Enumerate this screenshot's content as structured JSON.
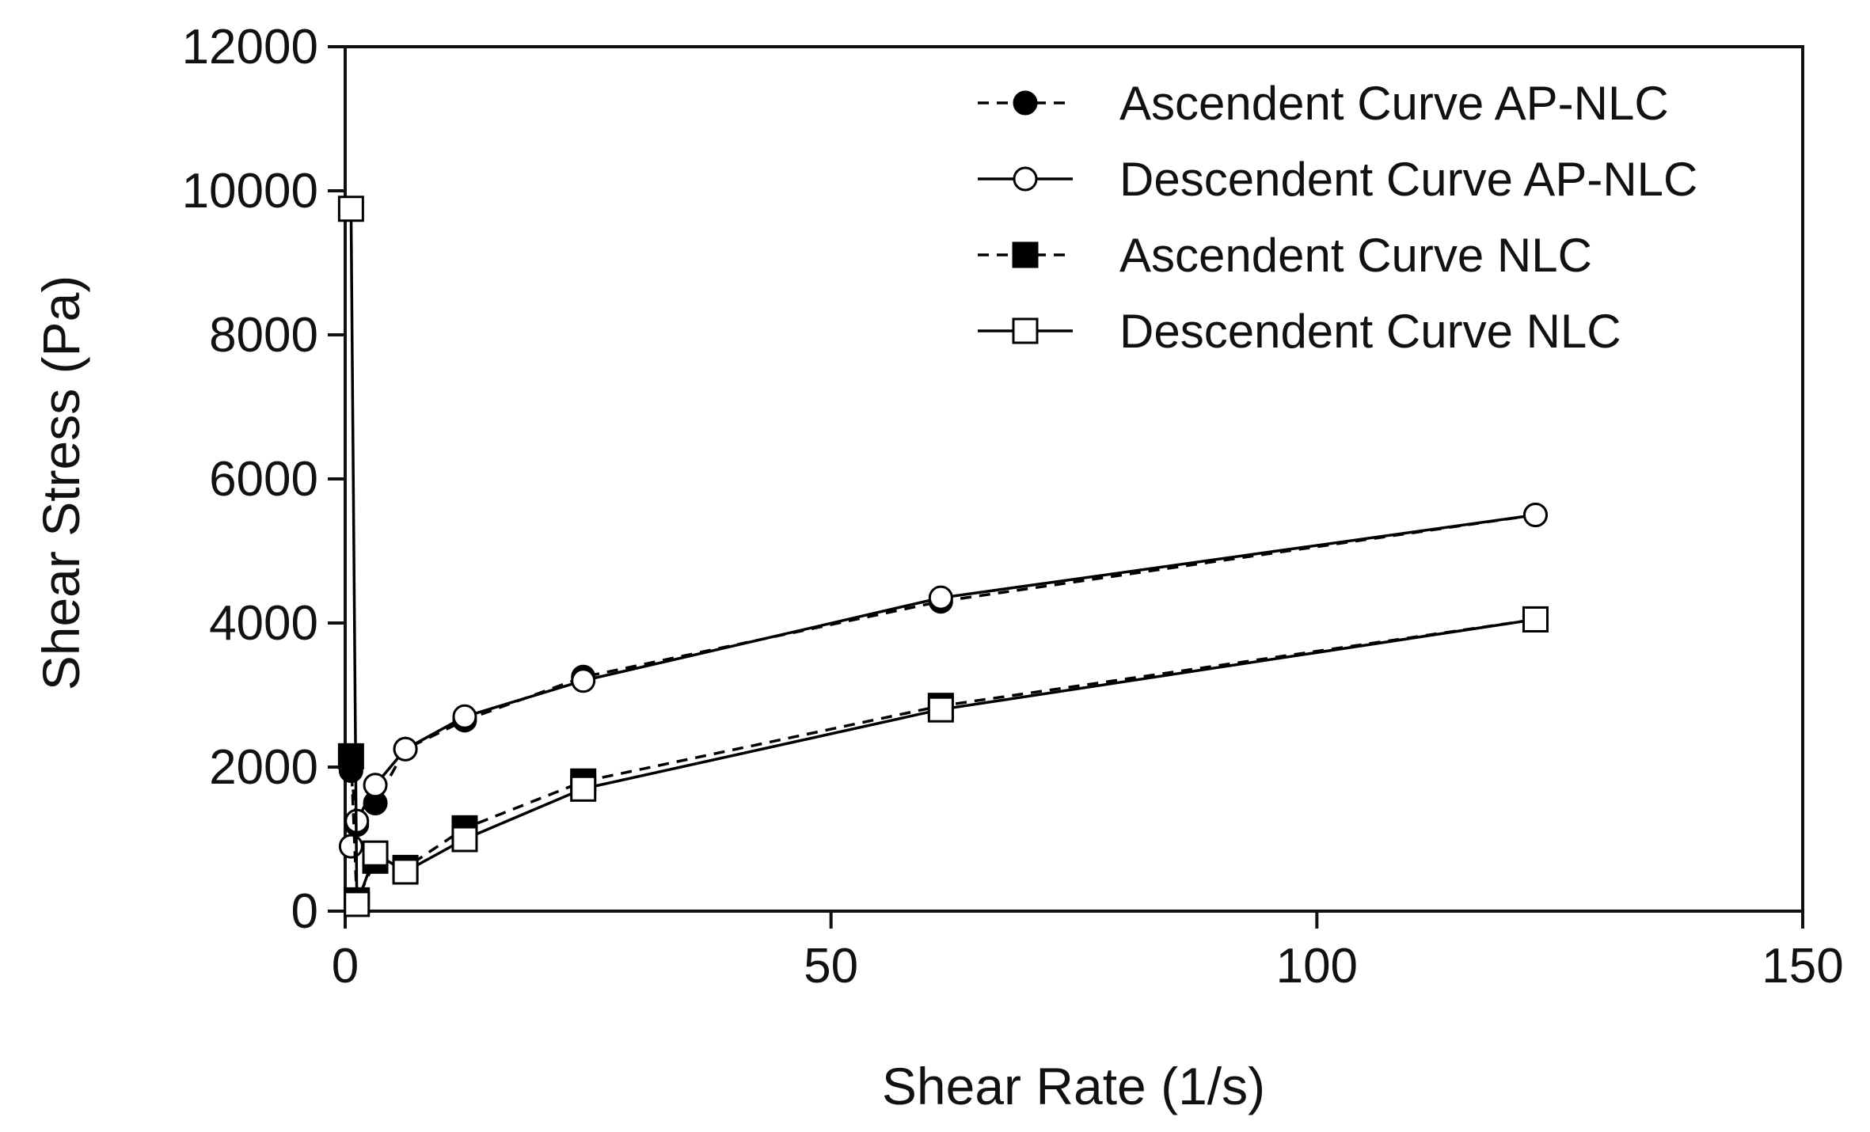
{
  "chart_data": {
    "type": "line",
    "title": "",
    "xlabel": "Shear Rate (1/s)",
    "ylabel": "Shear Stress (Pa)",
    "xlim": [
      0,
      150
    ],
    "ylim": [
      0,
      12000
    ],
    "xticks": [
      0,
      50,
      100,
      150
    ],
    "yticks": [
      0,
      2000,
      4000,
      6000,
      8000,
      10000,
      12000
    ],
    "xtick_labels": [
      "0",
      "50",
      "100",
      "150"
    ],
    "ytick_labels": [
      "0",
      "2000",
      "4000",
      "6000",
      "8000",
      "10000",
      "12000"
    ],
    "grid": false,
    "legend_position": "top-right",
    "series": [
      {
        "name": "Ascendent Curve  AP-NLC",
        "marker": "filled-circle",
        "line": "dashed",
        "x": [
          0.6,
          1.2,
          3.1,
          6.2,
          12.3,
          24.5,
          61.3,
          122.5
        ],
        "y": [
          1950,
          1200,
          1500,
          2250,
          2650,
          3250,
          4300,
          5500
        ]
      },
      {
        "name": "Descendent Curve AP-NLC",
        "marker": "open-circle",
        "line": "solid",
        "x": [
          122.5,
          61.3,
          24.5,
          12.3,
          6.2,
          3.1,
          1.2,
          0.6
        ],
        "y": [
          5500,
          4350,
          3200,
          2700,
          2250,
          1750,
          1250,
          900
        ]
      },
      {
        "name": "Ascendent Curve NLC",
        "marker": "filled-square",
        "line": "dashed",
        "x": [
          0.6,
          1.2,
          3.1,
          6.2,
          12.3,
          24.5,
          61.3,
          122.5
        ],
        "y": [
          2150,
          150,
          700,
          600,
          1150,
          1800,
          2850,
          4050
        ]
      },
      {
        "name": "Descendent Curve NLC",
        "marker": "open-square",
        "line": "solid",
        "x": [
          122.5,
          61.3,
          24.5,
          12.3,
          6.2,
          3.1,
          1.2,
          0.6
        ],
        "y": [
          4050,
          2800,
          1700,
          1000,
          550,
          800,
          100,
          9750
        ]
      }
    ]
  }
}
